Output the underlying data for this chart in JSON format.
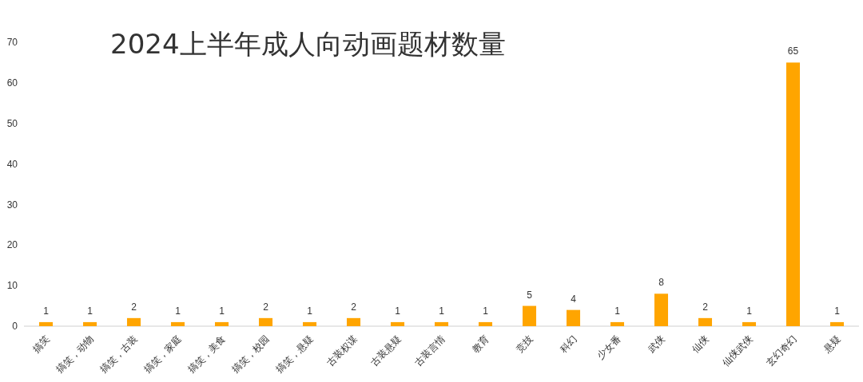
{
  "chart_data": {
    "type": "bar",
    "title": "2024上半年成人向动画题材数量",
    "categories": [
      "搞笑",
      "搞笑，动物",
      "搞笑，古装",
      "搞笑，家庭",
      "搞笑，美食",
      "搞笑，校园",
      "搞笑，悬疑",
      "古装权谋",
      "古装悬疑",
      "古装言情",
      "教育",
      "竞技",
      "科幻",
      "少女番",
      "武侠",
      "仙侠",
      "仙侠武侠",
      "玄幻奇幻",
      "悬疑"
    ],
    "values": [
      1,
      1,
      2,
      1,
      1,
      2,
      1,
      2,
      1,
      1,
      1,
      5,
      4,
      1,
      8,
      2,
      1,
      65,
      1
    ],
    "color": "#ffa500",
    "ylim": [
      0,
      70
    ],
    "yticks": [
      0,
      10,
      20,
      30,
      40,
      50,
      60,
      70
    ],
    "grid": false,
    "data_labels": true
  }
}
